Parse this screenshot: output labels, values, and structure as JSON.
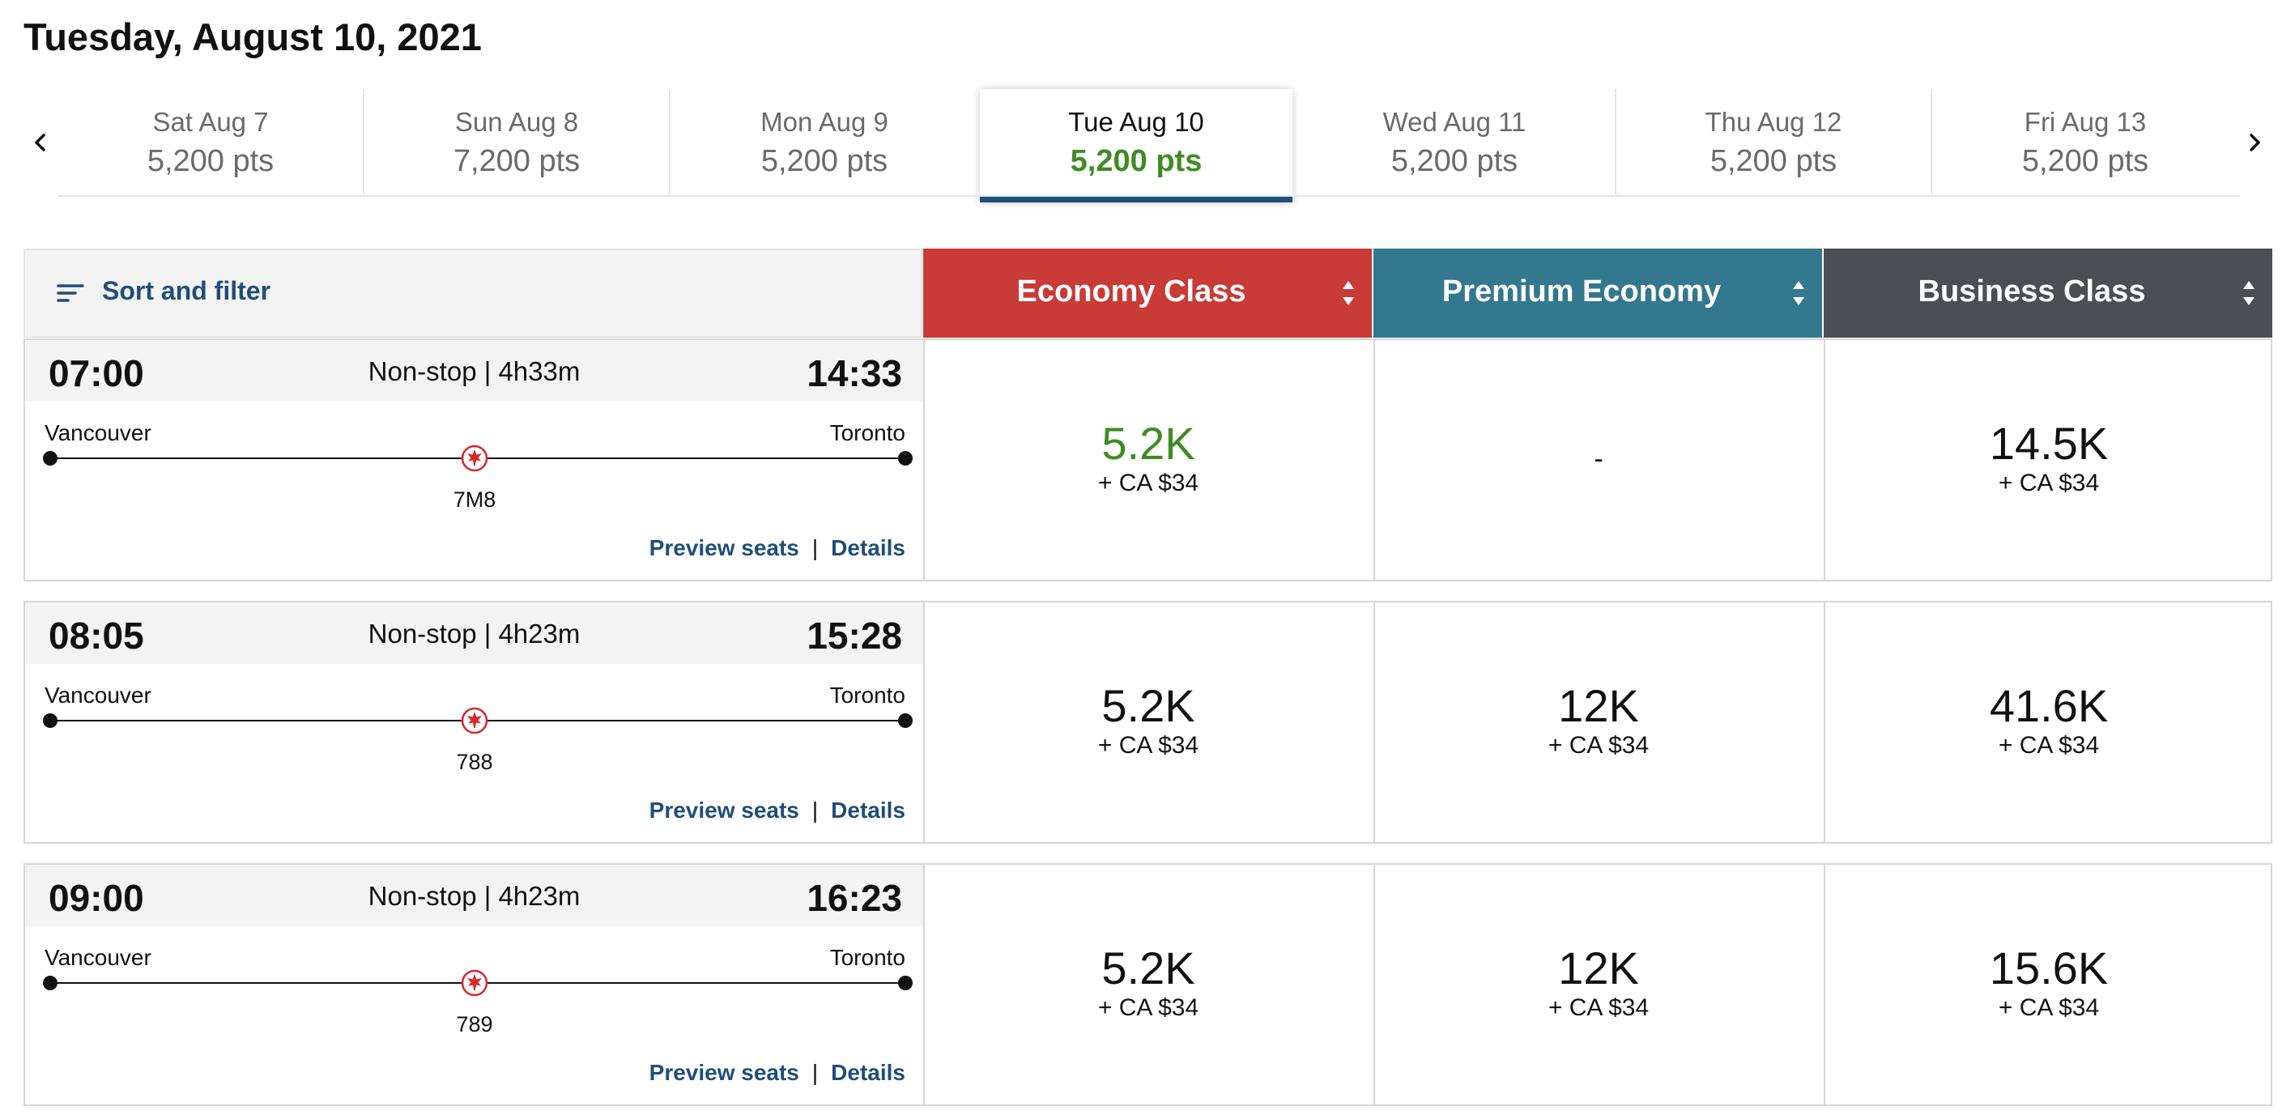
{
  "page_title": "Tuesday, August 10, 2021",
  "date_strip": {
    "days": [
      {
        "label": "Sat Aug 7",
        "pts": "5,200 pts",
        "selected": false
      },
      {
        "label": "Sun Aug 8",
        "pts": "7,200 pts",
        "selected": false
      },
      {
        "label": "Mon Aug 9",
        "pts": "5,200 pts",
        "selected": false
      },
      {
        "label": "Tue Aug 10",
        "pts": "5,200 pts",
        "selected": true
      },
      {
        "label": "Wed Aug 11",
        "pts": "5,200 pts",
        "selected": false
      },
      {
        "label": "Thu Aug 12",
        "pts": "5,200 pts",
        "selected": false
      },
      {
        "label": "Fri Aug 13",
        "pts": "5,200 pts",
        "selected": false
      }
    ],
    "prev_icon": "chevron-left-icon",
    "next_icon": "chevron-right-icon"
  },
  "sort_filter": {
    "label": "Sort and filter",
    "icon": "sort-filter-icon"
  },
  "cabins": [
    {
      "label": "Economy Class",
      "color": "#c83b37"
    },
    {
      "label": "Premium Economy",
      "color": "#33788e"
    },
    {
      "label": "Business Class",
      "color": "#4b4e52"
    }
  ],
  "links": {
    "preview_seats": "Preview seats",
    "separator": "|",
    "details": "Details"
  },
  "flights": [
    {
      "departure": "07:00",
      "arrival": "14:33",
      "duration": "Non-stop | 4h33m",
      "origin": "Vancouver",
      "destination": "Toronto",
      "aircraft": "7M8",
      "fares": {
        "economy": {
          "amount": "5.2K",
          "tax": "+ CA $34"
        },
        "premium": {
          "amount": "-",
          "tax": ""
        },
        "business": {
          "amount": "14.5K",
          "tax": "+ CA $34"
        }
      }
    },
    {
      "departure": "08:05",
      "arrival": "15:28",
      "duration": "Non-stop | 4h23m",
      "origin": "Vancouver",
      "destination": "Toronto",
      "aircraft": "788",
      "fares": {
        "economy": {
          "amount": "5.2K",
          "tax": "+ CA $34"
        },
        "premium": {
          "amount": "12K",
          "tax": "+ CA $34"
        },
        "business": {
          "amount": "41.6K",
          "tax": "+ CA $34"
        }
      }
    },
    {
      "departure": "09:00",
      "arrival": "16:23",
      "duration": "Non-stop | 4h23m",
      "origin": "Vancouver",
      "destination": "Toronto",
      "aircraft": "789",
      "fares": {
        "economy": {
          "amount": "5.2K",
          "tax": "+ CA $34"
        },
        "premium": {
          "amount": "12K",
          "tax": "+ CA $34"
        },
        "business": {
          "amount": "15.6K",
          "tax": "+ CA $34"
        }
      }
    }
  ],
  "colors": {
    "brand_blue": "#1f4e7a",
    "best_price_green": "#3f8b24",
    "airline_logo_red": "#d8262c"
  }
}
